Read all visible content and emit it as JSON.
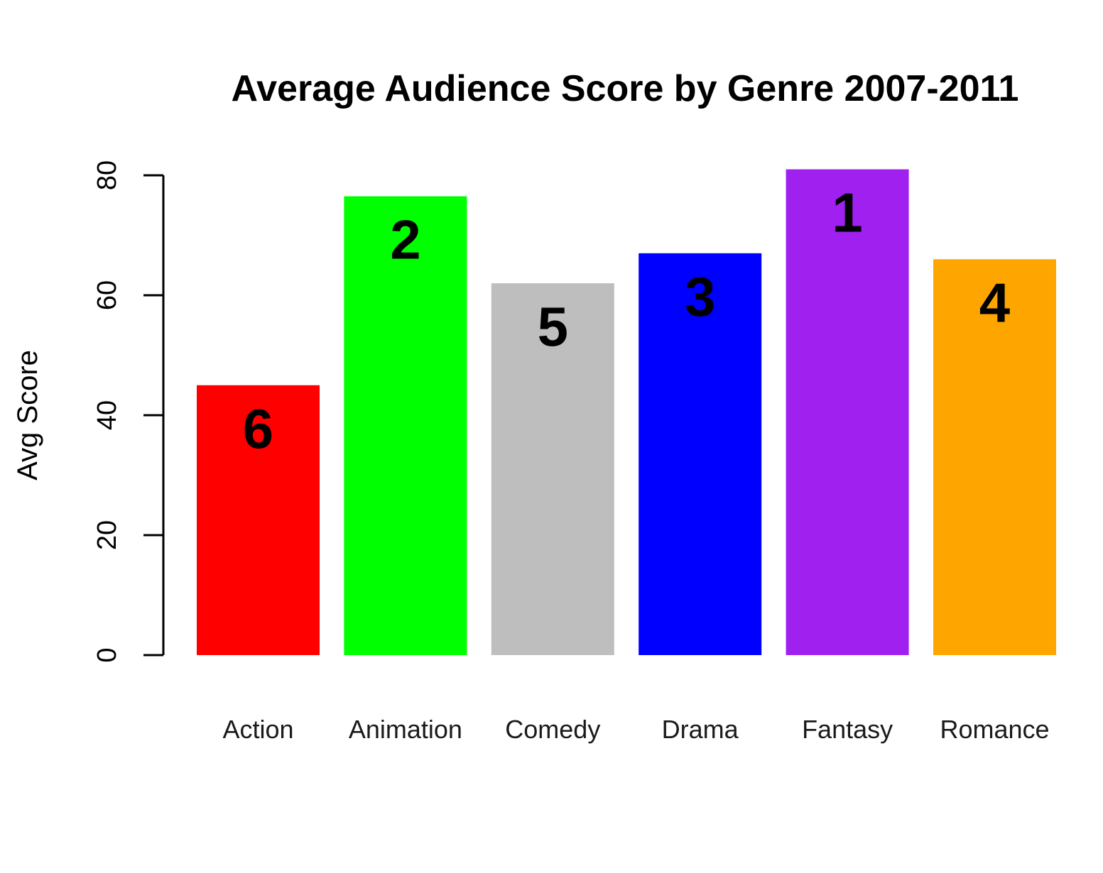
{
  "chart_data": {
    "type": "bar",
    "title": "Average Audience Score by Genre 2007-2011",
    "xlabel": "",
    "ylabel": "Avg Score",
    "ylim": [
      0,
      80
    ],
    "yticks": [
      0,
      20,
      40,
      60,
      80
    ],
    "grid": false,
    "categories": [
      "Action",
      "Animation",
      "Comedy",
      "Drama",
      "Fantasy",
      "Romance"
    ],
    "values": [
      45,
      76.5,
      62,
      67,
      81,
      66
    ],
    "bar_labels": [
      "6",
      "2",
      "5",
      "3",
      "1",
      "4"
    ],
    "colors": [
      "#ff0000",
      "#00ff00",
      "#bebebe",
      "#0000ff",
      "#a020f0",
      "#ffa500"
    ]
  }
}
